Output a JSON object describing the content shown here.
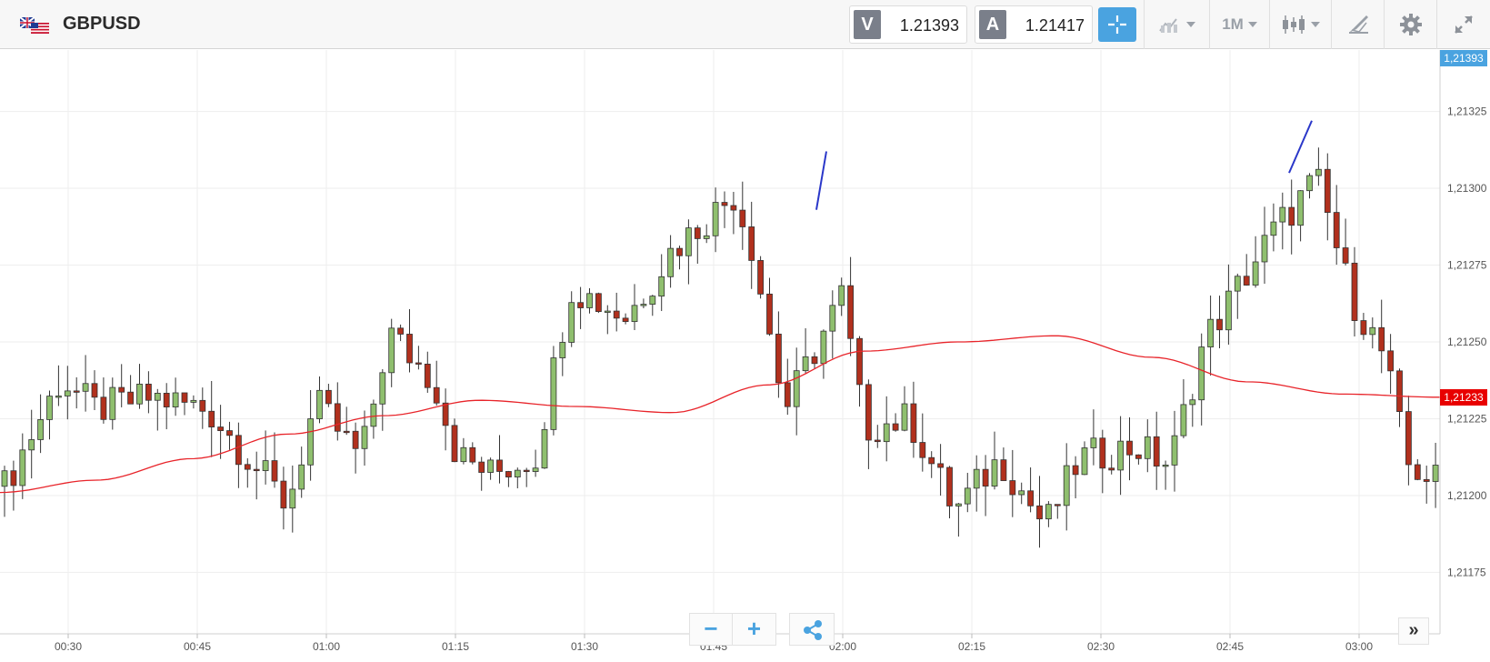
{
  "header": {
    "symbol": "GBPUSD",
    "flag_icon": "uk-us-flag-icon",
    "bid_tag": "V",
    "bid_value": "1.21393",
    "ask_tag": "A",
    "ask_value": "1.21417",
    "timeframe": "1M",
    "tools": [
      "crosshair-icon",
      "chart-type-icon",
      "timeframe-dropdown",
      "candle-style-icon",
      "drawing-tool-icon",
      "gear-icon",
      "fullscreen-icon"
    ]
  },
  "chart_data": {
    "type": "candlestick",
    "symbol": "GBPUSD",
    "x_ticks": [
      "00:30",
      "00:45",
      "01:00",
      "01:15",
      "01:30",
      "01:45",
      "02:00",
      "02:15",
      "02:30",
      "02:45",
      "03:00"
    ],
    "y_ticks": [
      "1,21175",
      "1,21200",
      "1,21225",
      "1,21250",
      "1,21275",
      "1,21300",
      "1,21325"
    ],
    "y_tick_values": [
      1.21175,
      1.212,
      1.21225,
      1.2125,
      1.21275,
      1.213,
      1.21325
    ],
    "ylim": [
      1.21155,
      1.21345
    ],
    "current_price_label": "1,21393",
    "ma_label": "1,21233",
    "colors": {
      "up": "#8fbf6e",
      "down": "#b1301d",
      "ma": "#e8242a",
      "trend": "#2a37c9",
      "badge_price": "#4aa3e0",
      "badge_ma": "#e80000"
    },
    "candles_spec": "[start,n,base] groups for generated OHLC",
    "ma": [
      1.21201,
      1.21205,
      1.21212,
      1.2122,
      1.21226,
      1.21231,
      1.21229,
      1.21227,
      1.21236,
      1.21247,
      1.2125,
      1.21252,
      1.21245,
      1.21237,
      1.21233,
      1.21232
    ]
  },
  "controls": {
    "zoom_out": "−",
    "zoom_in": "+",
    "share_icon": "share-icon",
    "more": "»"
  }
}
